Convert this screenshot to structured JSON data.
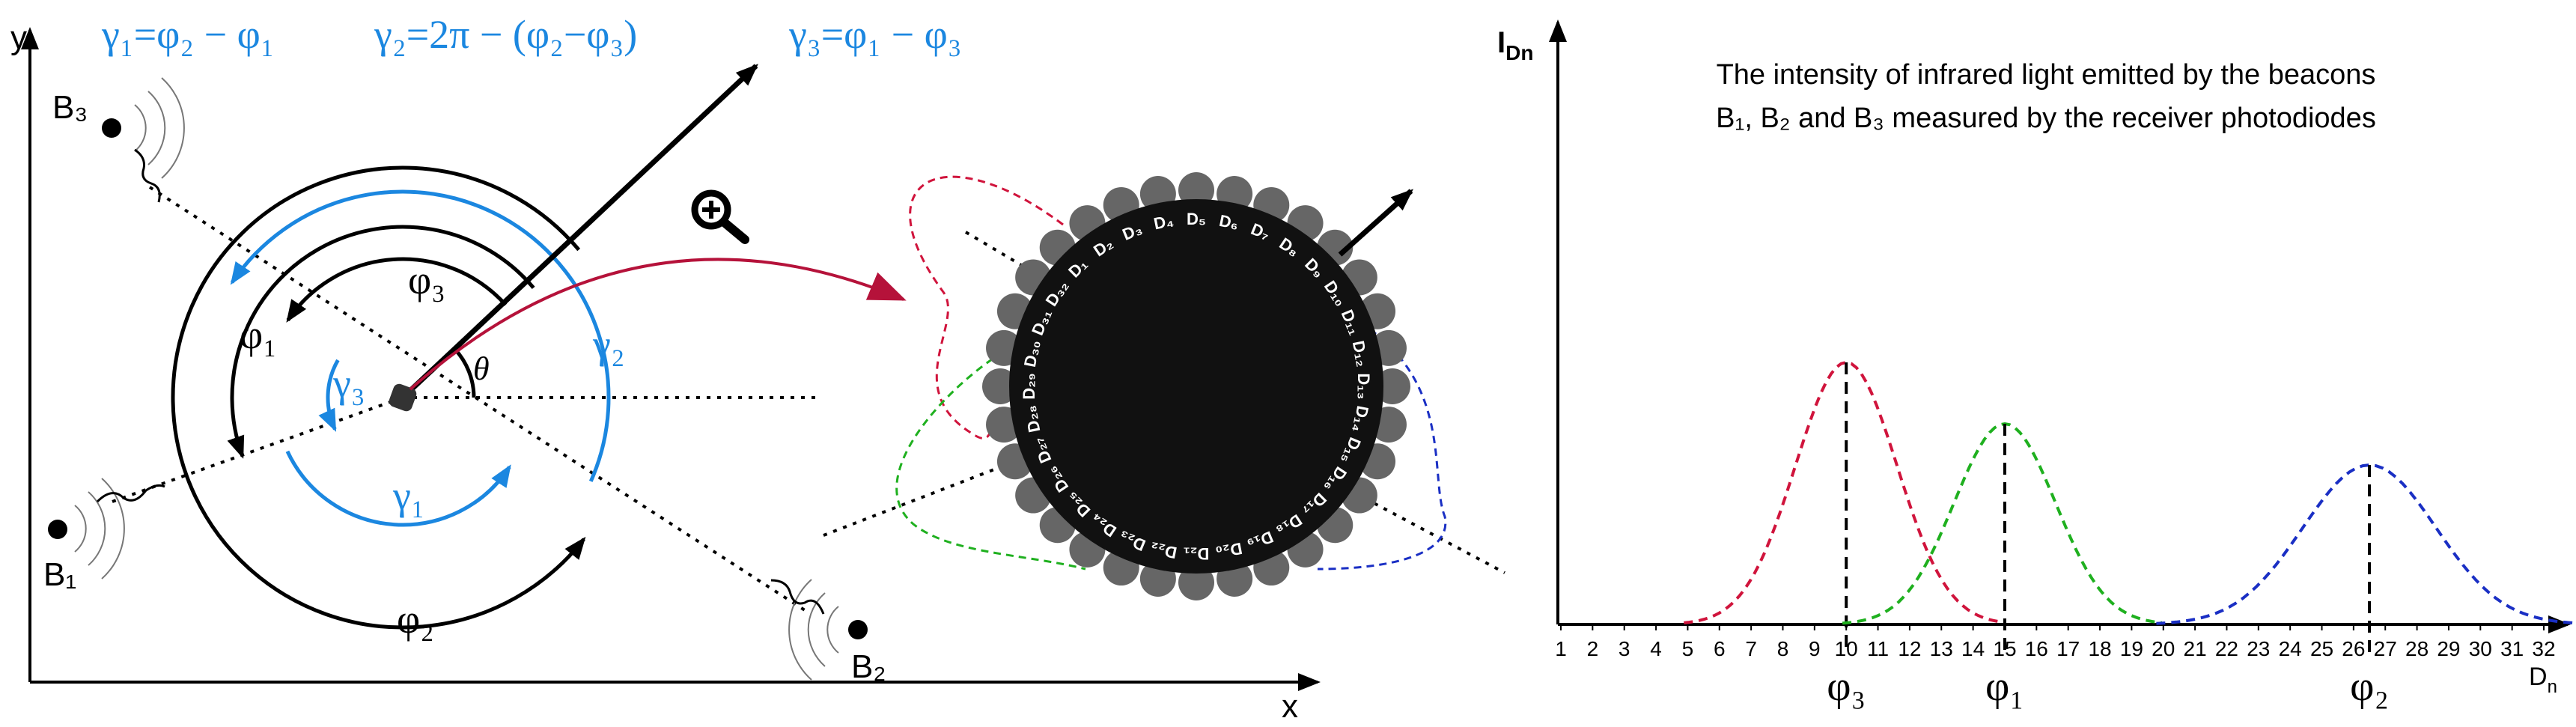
{
  "formulas": [
    "γ₁=φ₂ − φ₁",
    "γ₂=2π − (φ₂−φ₃)",
    "γ₃=φ₁ − φ₃"
  ],
  "axes": {
    "y": "y",
    "x": "x"
  },
  "beacons": [
    "B₁",
    "B₂",
    "B₃"
  ],
  "angles": {
    "phi1": "φ₁",
    "phi2": "φ₂",
    "phi3": "φ₃",
    "gamma1": "γ₁",
    "gamma2": "γ₂",
    "gamma3": "γ₃",
    "theta": "θ"
  },
  "diodes": [
    "D₁",
    "D₂",
    "D₃",
    "D₄",
    "D₅",
    "D₆",
    "D₇",
    "D₈",
    "D₉",
    "D₁₀",
    "D₁₁",
    "D₁₂",
    "D₁₃",
    "D₁₄",
    "D₁₅",
    "D₁₆",
    "D₁₇",
    "D₁₈",
    "D₁₉",
    "D₂₀",
    "D₂₁",
    "D₂₂",
    "D₂₃",
    "D₂₄",
    "D₂₅",
    "D₂₆",
    "D₂₇",
    "D₂₈",
    "D₂₉",
    "D₃₀",
    "D₃₁",
    "D₃₂"
  ],
  "intensity_chart": {
    "title": [
      "The intensity of infrared light emitted by the beacons",
      "B₁, B₂ and B₃  measured by the receiver photodiodes"
    ],
    "y_label": {
      "base": "I",
      "sub": "Dn"
    },
    "x_label": {
      "base": "D",
      "sub": "n"
    },
    "x_ticks": [
      1,
      2,
      3,
      4,
      5,
      6,
      7,
      8,
      9,
      10,
      11,
      12,
      13,
      14,
      15,
      16,
      17,
      18,
      19,
      20,
      21,
      22,
      23,
      24,
      25,
      26,
      27,
      28,
      29,
      30,
      31,
      32
    ],
    "peaks": [
      {
        "label": "φ₃",
        "at": 10,
        "color": "#d0143c"
      },
      {
        "label": "φ₁",
        "at": 15,
        "color": "#1fb01f"
      },
      {
        "label": "φ₂",
        "at": 26.5,
        "color": "#1a2fc4"
      }
    ]
  }
}
